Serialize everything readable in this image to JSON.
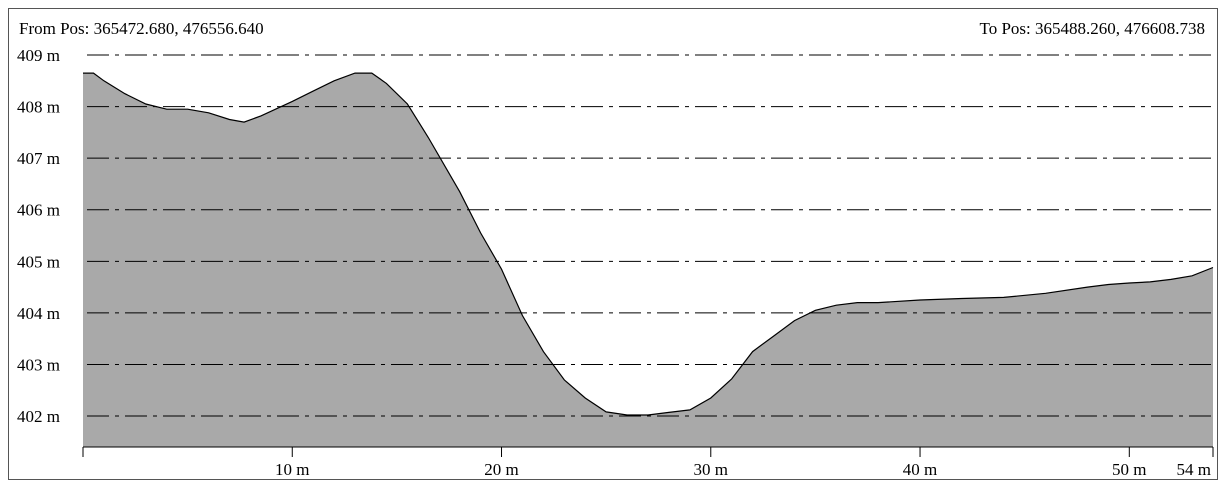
{
  "header": {
    "from_label": "From Pos: 365472.680, 476556.640",
    "to_label": "To Pos: 365488.260, 476608.738"
  },
  "colors": {
    "fill": "#a9a9a9",
    "line": "#000000",
    "grid": "#000000"
  },
  "chart_data": {
    "type": "area",
    "title": "",
    "xlabel": "",
    "ylabel": "",
    "xlim": [
      0,
      54
    ],
    "ylim": [
      401.4,
      409
    ],
    "grid": true,
    "grid_style": "dash-dot horizontal",
    "yticks": [
      {
        "value": 409,
        "label": "409 m"
      },
      {
        "value": 408,
        "label": "408 m"
      },
      {
        "value": 407,
        "label": "407 m"
      },
      {
        "value": 406,
        "label": "406 m"
      },
      {
        "value": 405,
        "label": "405 m"
      },
      {
        "value": 404,
        "label": "404 m"
      },
      {
        "value": 403,
        "label": "403 m"
      },
      {
        "value": 402,
        "label": "402 m"
      }
    ],
    "xticks": [
      {
        "value": 10,
        "label": "10 m"
      },
      {
        "value": 20,
        "label": "20 m"
      },
      {
        "value": 30,
        "label": "30 m"
      },
      {
        "value": 40,
        "label": "40 m"
      },
      {
        "value": 50,
        "label": "50 m"
      },
      {
        "value": 54,
        "label": "54 m"
      }
    ],
    "x": [
      0,
      0.5,
      1,
      2,
      3,
      4,
      5,
      6,
      7,
      7.7,
      8.5,
      10,
      11,
      12,
      13,
      13.8,
      14.5,
      15.5,
      16.5,
      17.5,
      18,
      19,
      20,
      21,
      22,
      23,
      24,
      25,
      26,
      27,
      28,
      29,
      30,
      31,
      32,
      33,
      34,
      35,
      36,
      37,
      38,
      40,
      42,
      44,
      46,
      48,
      49,
      50,
      51,
      52,
      53,
      54
    ],
    "y": [
      408.65,
      408.65,
      408.5,
      408.25,
      408.05,
      407.95,
      407.95,
      407.88,
      407.75,
      407.7,
      407.82,
      408.1,
      408.3,
      408.5,
      408.65,
      408.65,
      408.45,
      408.05,
      407.4,
      406.7,
      406.35,
      405.55,
      404.85,
      403.95,
      403.25,
      402.7,
      402.35,
      402.08,
      402.02,
      402.02,
      402.07,
      402.12,
      402.35,
      402.72,
      403.25,
      403.55,
      403.85,
      404.05,
      404.15,
      404.2,
      404.2,
      404.25,
      404.28,
      404.3,
      404.38,
      404.5,
      404.55,
      404.58,
      404.6,
      404.65,
      404.72,
      404.88
    ]
  }
}
